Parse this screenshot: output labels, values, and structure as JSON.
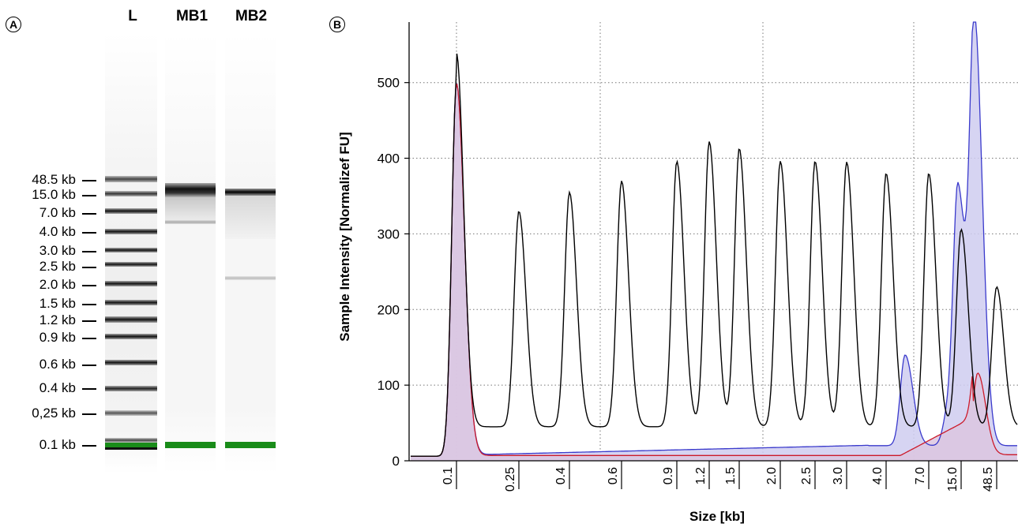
{
  "panel_a": {
    "badge": "A",
    "lanes": [
      "L",
      "MB1",
      "MB2"
    ],
    "ladder_labels": [
      "48.5 kb",
      "15.0 kb",
      "7.0 kb",
      "4.0 kb",
      "3.0 kb",
      "2.5 kb",
      "2.0 kb",
      "1.5 kb",
      "1.2 kb",
      "0.9 kb",
      "0.6 kb",
      "0.4 kb",
      "0,25 kb",
      "0.1 kb"
    ],
    "marker_color": "#1a8c1a"
  },
  "panel_b": {
    "badge": "B"
  },
  "chart_data": {
    "type": "line",
    "title": "",
    "xlabel": "Size [kb]",
    "ylabel": "Sample Intensity [Normalizef FU]",
    "x_tick_labels": [
      "0.1",
      "0.25",
      "0.4",
      "0.6",
      "0.9",
      "1.2",
      "1.5",
      "2.0",
      "2.5",
      "3.0",
      "4.0",
      "7.0",
      "15.0",
      "48.5"
    ],
    "y_ticks": [
      0,
      100,
      200,
      300,
      400,
      500
    ],
    "ylim": [
      0,
      580
    ],
    "grid": true,
    "series": [
      {
        "color": "#000000",
        "fill": false,
        "peaks": [
          {
            "x": "0.1",
            "y": 500
          },
          {
            "x": "0.25",
            "y": 330
          },
          {
            "x": "0.4",
            "y": 355
          },
          {
            "x": "0.6",
            "y": 370
          },
          {
            "x": "0.9",
            "y": 396
          },
          {
            "x": "1.2",
            "y": 422
          },
          {
            "x": "1.5",
            "y": 413
          },
          {
            "x": "2.0",
            "y": 396
          },
          {
            "x": "2.5",
            "y": 396
          },
          {
            "x": "3.0",
            "y": 395
          },
          {
            "x": "4.0",
            "y": 380
          },
          {
            "x": "7.0",
            "y": 380
          },
          {
            "x": "15.0",
            "y": 306
          },
          {
            "x": "48.5",
            "y": 230
          }
        ]
      },
      {
        "color": "#3a3acc",
        "fill": true,
        "fill_color": "#cfcdf0",
        "points": [
          {
            "x": "0.1",
            "y": 498
          },
          {
            "x": "0.25",
            "y": 8
          },
          {
            "x": "1.5",
            "y": 12
          },
          {
            "x": "4.0",
            "y": 22
          },
          {
            "x": "7.0",
            "y": 140
          },
          {
            "x": "15.0",
            "y": 350
          },
          {
            "x": "48.5",
            "y": 40
          }
        ],
        "main_peak": {
          "y": 565
        }
      },
      {
        "color": "#cc1a2a",
        "fill": true,
        "fill_color": "#dcc5e0",
        "points": [
          {
            "x": "0.1",
            "y": 498
          },
          {
            "x": "0.25",
            "y": 7
          },
          {
            "x": "4.0",
            "y": 10
          },
          {
            "x": "15.0",
            "y": 60
          },
          {
            "x": "48.5",
            "y": 10
          }
        ],
        "main_peak": {
          "y": 163
        }
      }
    ]
  }
}
